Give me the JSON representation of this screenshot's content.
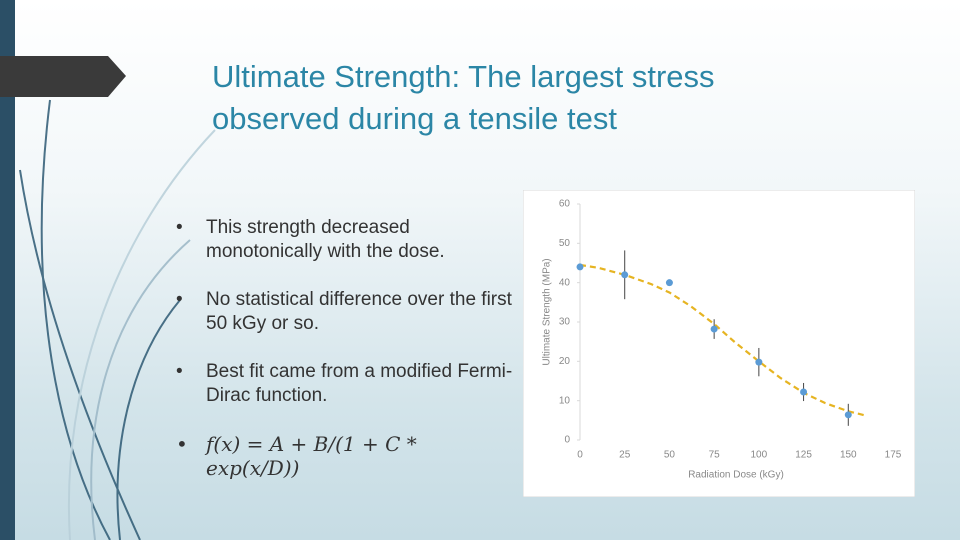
{
  "title": "Ultimate Strength:  The largest stress observed during a tensile test",
  "bullets": [
    "This strength decreased monotonically with the dose.",
    "No statistical difference over the first 50 kGy or so.",
    "Best fit came from a modified Fermi-Dirac function.",
    "f(x) = A + B/(1 + C * exp(x/D))"
  ],
  "chart_data": {
    "type": "scatter",
    "xlabel": "Radiation Dose (kGy)",
    "ylabel": "Ultimate Strength (MPa)",
    "xlim": [
      0,
      175
    ],
    "xticks": [
      0,
      25,
      50,
      75,
      100,
      125,
      150,
      175
    ],
    "ylim": [
      0,
      60
    ],
    "yticks": [
      0,
      10,
      20,
      30,
      40,
      50,
      60
    ],
    "series": [
      {
        "type": "scatter",
        "color": "#5b9bd5",
        "x": [
          0,
          25,
          50,
          75,
          100,
          125,
          150
        ],
        "values": [
          44,
          42,
          40,
          28.2,
          19.8,
          12.2,
          6.4
        ],
        "errors": [
          0.5,
          6.2,
          0,
          2.5,
          3.6,
          2.3,
          2.8
        ]
      },
      {
        "type": "line",
        "color": "#e6b422",
        "dashed": true,
        "x": [
          0,
          10,
          25,
          40,
          50,
          62,
          75,
          87,
          100,
          112,
          125,
          137,
          150,
          160
        ],
        "values": [
          44.5,
          43.8,
          42,
          39.6,
          37.5,
          34,
          29.5,
          24.7,
          20,
          15.8,
          12,
          9.4,
          7.3,
          6.2
        ]
      }
    ]
  }
}
